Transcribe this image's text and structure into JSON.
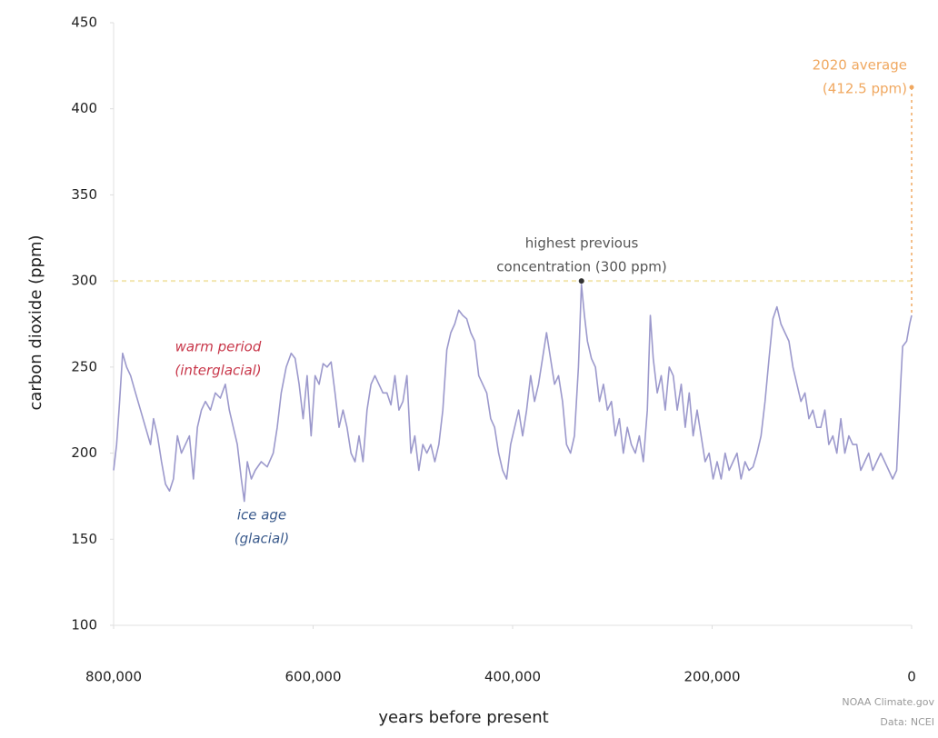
{
  "chart_data": {
    "type": "line",
    "x_label": "years before present",
    "y_label": "carbon dioxide (ppm)",
    "xlim": [
      800000,
      0
    ],
    "xticks": [
      {
        "value": 800000,
        "label": "800,000"
      },
      {
        "value": 600000,
        "label": "600,000"
      },
      {
        "value": 400000,
        "label": "400,000"
      },
      {
        "value": 200000,
        "label": "200,000"
      },
      0
    ],
    "ylim": [
      100,
      450
    ],
    "yticks": [
      100,
      150,
      200,
      250,
      300,
      350,
      400,
      450
    ],
    "x": [
      800000,
      797000,
      794000,
      791000,
      787000,
      783000,
      778000,
      773000,
      768000,
      763000,
      760000,
      756000,
      752000,
      748000,
      744000,
      740000,
      736000,
      732000,
      728000,
      724000,
      720000,
      716000,
      712000,
      708000,
      703000,
      698000,
      693000,
      688000,
      684000,
      680000,
      676000,
      672000,
      669000,
      666000,
      662000,
      658000,
      652000,
      646000,
      640000,
      636000,
      632000,
      627000,
      622000,
      618000,
      614000,
      610000,
      606000,
      602000,
      598000,
      594000,
      590000,
      586000,
      582000,
      578000,
      574000,
      570000,
      566000,
      562000,
      558000,
      554000,
      550000,
      546000,
      542000,
      538000,
      534000,
      530000,
      526000,
      522000,
      518000,
      514000,
      510000,
      506000,
      502000,
      498000,
      494000,
      490000,
      486000,
      482000,
      478000,
      474000,
      470000,
      466000,
      462000,
      458000,
      454000,
      450000,
      446000,
      442000,
      438000,
      434000,
      430000,
      426000,
      422000,
      418000,
      414000,
      410000,
      406000,
      402000,
      398000,
      394000,
      390000,
      386000,
      382000,
      378000,
      374000,
      370000,
      366000,
      362000,
      358000,
      354000,
      350000,
      346000,
      342000,
      338000,
      334000,
      331000,
      328000,
      325000,
      321000,
      317000,
      313000,
      309000,
      305000,
      301000,
      297000,
      293000,
      289000,
      285000,
      281000,
      277000,
      273000,
      269000,
      265000,
      262000,
      259000,
      255000,
      251000,
      247000,
      243000,
      239000,
      235000,
      231000,
      227000,
      223000,
      219000,
      215000,
      211000,
      207000,
      203000,
      199000,
      195000,
      191000,
      187000,
      183000,
      179000,
      175000,
      171000,
      167000,
      163000,
      159000,
      155000,
      151000,
      147000,
      143000,
      139000,
      135000,
      131000,
      127000,
      123000,
      119000,
      115000,
      111000,
      107000,
      103000,
      99000,
      95000,
      91000,
      87000,
      83000,
      79000,
      75000,
      71000,
      67000,
      63000,
      59000,
      55000,
      51000,
      47000,
      43000,
      39000,
      35000,
      31000,
      27000,
      23000,
      19000,
      15000,
      11000,
      9000,
      5000,
      2000,
      0
    ],
    "series": [
      {
        "name": "carbon dioxide",
        "color": "#9c99cc",
        "values": [
          190,
          205,
          230,
          258,
          250,
          245,
          235,
          225,
          215,
          205,
          220,
          210,
          195,
          182,
          178,
          185,
          210,
          200,
          205,
          210,
          185,
          215,
          225,
          230,
          225,
          235,
          232,
          240,
          225,
          215,
          205,
          185,
          172,
          195,
          185,
          190,
          195,
          192,
          200,
          215,
          235,
          250,
          258,
          255,
          240,
          220,
          245,
          210,
          245,
          240,
          252,
          250,
          253,
          235,
          215,
          225,
          215,
          200,
          195,
          210,
          195,
          225,
          240,
          245,
          240,
          235,
          235,
          228,
          245,
          225,
          230,
          245,
          200,
          210,
          190,
          205,
          200,
          205,
          195,
          205,
          225,
          260,
          270,
          275,
          283,
          280,
          278,
          270,
          265,
          245,
          240,
          235,
          220,
          215,
          200,
          190,
          185,
          205,
          215,
          225,
          210,
          225,
          245,
          230,
          240,
          255,
          270,
          255,
          240,
          245,
          230,
          205,
          200,
          210,
          250,
          298,
          280,
          265,
          255,
          250,
          230,
          240,
          225,
          230,
          210,
          220,
          200,
          215,
          205,
          200,
          210,
          195,
          225,
          280,
          255,
          235,
          245,
          225,
          250,
          245,
          225,
          240,
          215,
          235,
          210,
          225,
          210,
          195,
          200,
          185,
          195,
          185,
          200,
          190,
          195,
          200,
          185,
          195,
          190,
          192,
          200,
          210,
          230,
          255,
          278,
          285,
          275,
          270,
          265,
          250,
          240,
          230,
          235,
          220,
          225,
          215,
          215,
          225,
          205,
          210,
          200,
          220,
          200,
          210,
          205,
          205,
          190,
          195,
          200,
          190,
          195,
          200,
          195,
          190,
          185,
          190,
          240,
          262,
          265,
          275,
          280
        ]
      }
    ],
    "reference_line": {
      "value": 300,
      "color": "#f3e6b0"
    },
    "peak_point": {
      "x": 331000,
      "y": 300,
      "color": "#333333"
    },
    "current_point": {
      "x": 0,
      "y": 412.5,
      "color": "#f0a860"
    },
    "annotations": [
      {
        "lines": [
          "warm period",
          "(interglacial)"
        ],
        "color": "#c8374a"
      },
      {
        "lines": [
          "ice age",
          "(glacial)"
        ],
        "color": "#3a5a8c"
      },
      {
        "lines": [
          "highest previous",
          "concentration (300 ppm)"
        ],
        "color": "#555555"
      },
      {
        "lines": [
          "2020 average",
          "(412.5 ppm)"
        ],
        "color": "#f0a860"
      }
    ],
    "credit": [
      "NOAA Climate.gov",
      "Data: NCEI"
    ]
  }
}
